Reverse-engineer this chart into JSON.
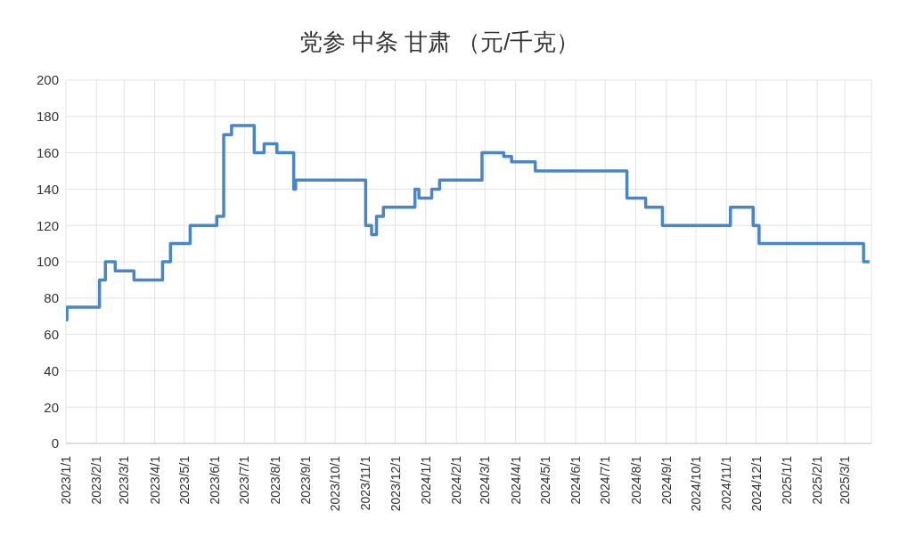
{
  "chart_data": {
    "type": "step",
    "title": "党参 中条 甘肃 （元/千克）",
    "x": [
      "2023-01-01",
      "2023-01-02",
      "2023-02-04",
      "2023-02-10",
      "2023-02-20",
      "2023-03-11",
      "2023-04-09",
      "2023-04-17",
      "2023-05-07",
      "2023-06-03",
      "2023-06-10",
      "2023-06-18",
      "2023-07-11",
      "2023-07-21",
      "2023-08-03",
      "2023-08-20",
      "2023-08-22",
      "2023-11-01",
      "2023-11-07",
      "2023-11-12",
      "2023-11-19",
      "2023-12-21",
      "2023-12-25",
      "2024-01-07",
      "2024-01-15",
      "2024-02-27",
      "2024-03-20",
      "2024-03-28",
      "2024-04-21",
      "2024-07-23",
      "2024-08-11",
      "2024-08-28",
      "2024-11-05",
      "2024-11-28",
      "2024-12-04",
      "2025-03-20",
      "2025-03-26"
    ],
    "series": [
      {
        "color": "#4a86c5",
        "values": [
          68,
          75,
          90,
          100,
          95,
          90,
          100,
          110,
          120,
          125,
          170,
          175,
          160,
          165,
          160,
          140,
          145,
          120,
          115,
          125,
          130,
          140,
          135,
          140,
          145,
          160,
          158,
          155,
          150,
          135,
          130,
          120,
          130,
          120,
          110,
          100,
          100
        ]
      }
    ],
    "xlim": [
      "2023-01-01",
      "2025-03-28"
    ],
    "xticks": [
      {
        "value": "2023-01-01",
        "label": "2023/1/1"
      },
      {
        "value": "2023-02-01",
        "label": "2023/2/1"
      },
      {
        "value": "2023-03-01",
        "label": "2023/3/1"
      },
      {
        "value": "2023-04-01",
        "label": "2023/4/1"
      },
      {
        "value": "2023-05-01",
        "label": "2023/5/1"
      },
      {
        "value": "2023-06-01",
        "label": "2023/6/1"
      },
      {
        "value": "2023-07-01",
        "label": "2023/7/1"
      },
      {
        "value": "2023-08-01",
        "label": "2023/8/1"
      },
      {
        "value": "2023-09-01",
        "label": "2023/9/1"
      },
      {
        "value": "2023-10-01",
        "label": "2023/10/1"
      },
      {
        "value": "2023-11-01",
        "label": "2023/11/1"
      },
      {
        "value": "2023-12-01",
        "label": "2023/12/1"
      },
      {
        "value": "2024-01-01",
        "label": "2024/1/1"
      },
      {
        "value": "2024-02-01",
        "label": "2024/2/1"
      },
      {
        "value": "2024-03-01",
        "label": "2024/3/1"
      },
      {
        "value": "2024-04-01",
        "label": "2024/4/1"
      },
      {
        "value": "2024-05-01",
        "label": "2024/5/1"
      },
      {
        "value": "2024-06-01",
        "label": "2024/6/1"
      },
      {
        "value": "2024-07-01",
        "label": "2024/7/1"
      },
      {
        "value": "2024-08-01",
        "label": "2024/8/1"
      },
      {
        "value": "2024-09-01",
        "label": "2024/9/1"
      },
      {
        "value": "2024-10-01",
        "label": "2024/10/1"
      },
      {
        "value": "2024-11-01",
        "label": "2024/11/1"
      },
      {
        "value": "2024-12-01",
        "label": "2024/12/1"
      },
      {
        "value": "2025-01-01",
        "label": "2025/1/1"
      },
      {
        "value": "2025-02-01",
        "label": "2025/2/1"
      },
      {
        "value": "2025-03-01",
        "label": "2025/3/1"
      }
    ],
    "ylim": [
      0,
      200
    ],
    "yticks": [
      0,
      20,
      40,
      60,
      80,
      100,
      120,
      140,
      160,
      180,
      200
    ],
    "grid": true,
    "marker": "none",
    "line_style": "solid"
  }
}
